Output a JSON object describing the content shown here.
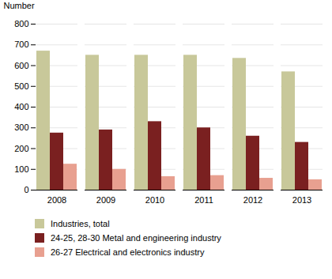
{
  "chart_data": {
    "type": "bar",
    "ylabel": "Number",
    "categories": [
      "2008",
      "2009",
      "2010",
      "2011",
      "2012",
      "2013"
    ],
    "series": [
      {
        "name": "Industries, total",
        "color": "#c8c89a",
        "values": [
          670,
          650,
          650,
          650,
          635,
          570
        ]
      },
      {
        "name": "24-25, 28-30 Metal and engineering industry",
        "color": "#7a2020",
        "values": [
          275,
          290,
          330,
          300,
          260,
          230
        ]
      },
      {
        "name": "26-27 Electrical and electronics industry",
        "color": "#e8a090",
        "values": [
          125,
          100,
          65,
          70,
          57,
          50
        ]
      }
    ],
    "ylim": [
      0,
      800
    ],
    "yticks": [
      0,
      100,
      200,
      300,
      400,
      500,
      600,
      700,
      800
    ],
    "grid": true,
    "legend": "bottom"
  }
}
